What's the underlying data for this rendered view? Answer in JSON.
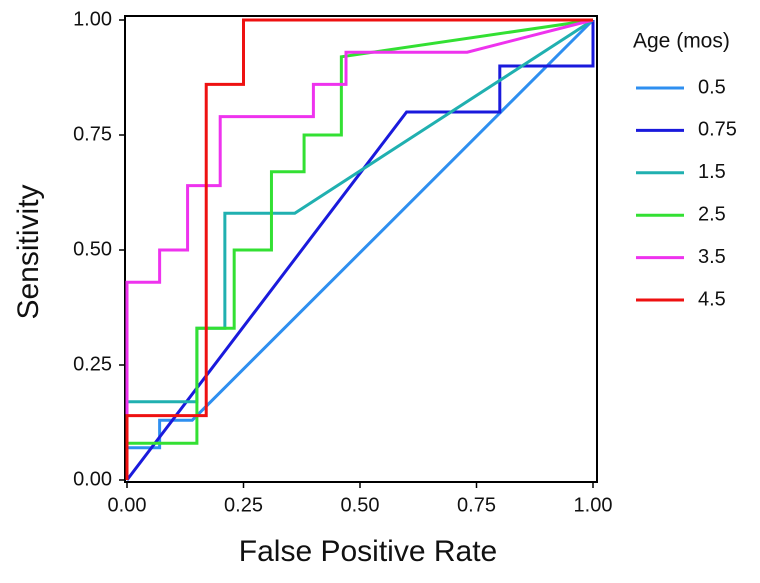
{
  "chart_data": {
    "type": "line",
    "xlabel": "False Positive Rate",
    "ylabel": "Sensitivity",
    "legend_title": "Age (mos)",
    "xlim": [
      0,
      1
    ],
    "ylim": [
      0,
      1
    ],
    "xticks": [
      {
        "value": 0,
        "label": "0.00"
      },
      {
        "value": 0.25,
        "label": "0.25"
      },
      {
        "value": 0.5,
        "label": "0.50"
      },
      {
        "value": 0.75,
        "label": "0.75"
      },
      {
        "value": 1,
        "label": "1.00"
      }
    ],
    "yticks": [
      {
        "value": 0,
        "label": "0.00"
      },
      {
        "value": 0.25,
        "label": "0.25"
      },
      {
        "value": 0.5,
        "label": "0.50"
      },
      {
        "value": 0.75,
        "label": "0.75"
      },
      {
        "value": 1,
        "label": "1.00"
      }
    ],
    "legend": "right",
    "series": [
      {
        "name": "0.5",
        "color": "#2e8ff0",
        "x": [
          0,
          0,
          0.07,
          0.07,
          0.14,
          1
        ],
        "values": [
          0,
          0.07,
          0.07,
          0.13,
          0.13,
          1
        ]
      },
      {
        "name": "0.75",
        "color": "#1a1adc",
        "x": [
          0,
          0.6,
          0.8,
          0.8,
          1,
          1
        ],
        "values": [
          0,
          0.8,
          0.8,
          0.9,
          0.9,
          1
        ]
      },
      {
        "name": "1.5",
        "color": "#20b0b0",
        "x": [
          0,
          0,
          0.15,
          0.15,
          0.21,
          0.21,
          0.36,
          1
        ],
        "values": [
          0,
          0.17,
          0.17,
          0.33,
          0.33,
          0.58,
          0.58,
          1
        ]
      },
      {
        "name": "2.5",
        "color": "#33e033",
        "x": [
          0,
          0,
          0.15,
          0.15,
          0.23,
          0.23,
          0.31,
          0.31,
          0.38,
          0.38,
          0.46,
          0.46,
          1
        ],
        "values": [
          0,
          0.08,
          0.08,
          0.33,
          0.33,
          0.5,
          0.5,
          0.67,
          0.67,
          0.75,
          0.75,
          0.92,
          1
        ]
      },
      {
        "name": "3.5",
        "color": "#ee33ee",
        "x": [
          0,
          0,
          0.07,
          0.07,
          0.13,
          0.13,
          0.2,
          0.2,
          0.4,
          0.4,
          0.47,
          0.47,
          0.73,
          1
        ],
        "values": [
          0,
          0.43,
          0.43,
          0.5,
          0.5,
          0.64,
          0.64,
          0.79,
          0.79,
          0.86,
          0.86,
          0.93,
          0.93,
          1
        ]
      },
      {
        "name": "4.5",
        "color": "#ee1111",
        "x": [
          0,
          0,
          0.17,
          0.17,
          0.25,
          0.25,
          1
        ],
        "values": [
          0,
          0.14,
          0.14,
          0.86,
          0.86,
          1,
          1
        ]
      }
    ]
  }
}
